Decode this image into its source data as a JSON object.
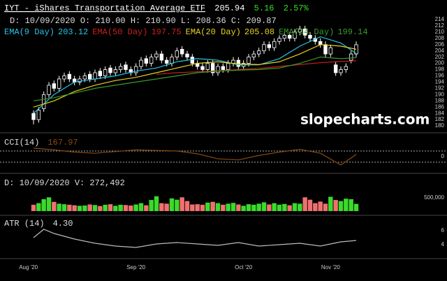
{
  "header": {
    "symbol": "IYT - iShares Transportation Average ETF",
    "last": "205.94",
    "change": "5.16",
    "change_pct": "2.57%",
    "cursor": "D: 10/09/2020 O: 210.00 H: 210.90 L: 208.36 C: 209.87",
    "watermark": "slopecharts.com"
  },
  "x_axis": {
    "xlim": [
      -3,
      66
    ],
    "xticks": [
      {
        "value": -1,
        "label": "Aug '20"
      },
      {
        "value": 20,
        "label": "Sep '20"
      },
      {
        "value": 41,
        "label": "Oct '20"
      },
      {
        "value": 58,
        "label": "Nov '20"
      }
    ]
  },
  "chart_data": [
    {
      "type": "candlestick",
      "ylim": [
        178,
        215
      ],
      "yticks": [
        180,
        182,
        184,
        186,
        188,
        190,
        192,
        194,
        196,
        198,
        200,
        202,
        204,
        206,
        208,
        210,
        212,
        214
      ],
      "open": [
        184,
        182,
        185.5,
        190,
        193.5,
        192,
        195,
        196.5,
        195,
        194,
        195,
        196.5,
        195,
        197.5,
        196,
        198.5,
        197,
        198,
        199.5,
        198,
        197,
        199,
        201.5,
        200,
        202,
        203,
        201,
        200,
        202,
        204.5,
        203,
        202,
        200,
        199,
        198,
        200,
        197,
        199,
        198,
        200,
        201,
        199,
        200,
        202,
        203,
        204,
        206,
        205,
        207,
        208,
        209,
        208,
        210,
        211,
        209,
        208,
        207,
        206,
        203,
        199.5,
        197,
        198,
        201,
        203
      ],
      "high": [
        185,
        186,
        191,
        194,
        194.5,
        196,
        197,
        197.5,
        196,
        196,
        197,
        197.5,
        198,
        198.5,
        199,
        199.5,
        199,
        200,
        200.5,
        199,
        200,
        202,
        202.5,
        203,
        204,
        204,
        202,
        203,
        205,
        205.5,
        204,
        203,
        201,
        200,
        201,
        201,
        200,
        200,
        201,
        202,
        202,
        201,
        203,
        204,
        205,
        207,
        207,
        208,
        209,
        210,
        210,
        211,
        212,
        212,
        210,
        209,
        208,
        207,
        206,
        200.5,
        199,
        200,
        204,
        207
      ],
      "low": [
        180.5,
        181,
        184.5,
        189,
        191,
        191,
        194,
        194,
        193,
        193,
        194,
        194,
        194,
        195,
        195,
        196,
        196,
        197,
        197,
        196,
        196,
        198,
        199,
        199,
        201,
        200,
        199,
        199,
        201,
        202,
        201,
        199,
        198,
        197,
        197,
        196,
        196,
        197,
        197,
        199,
        198,
        198,
        199,
        201,
        202,
        203,
        204,
        204,
        206,
        207,
        207,
        207,
        209,
        208,
        207,
        206,
        205,
        202,
        202,
        196,
        196,
        197,
        200,
        202
      ],
      "close": [
        182,
        185,
        190,
        193,
        192,
        195,
        196,
        195,
        194,
        195,
        196,
        195,
        197,
        196,
        198,
        197,
        198,
        199,
        198,
        197,
        199,
        201,
        200,
        202,
        203,
        201,
        200,
        202,
        204,
        203,
        202,
        200,
        199,
        198,
        200,
        197,
        199,
        198,
        200,
        201,
        199,
        200,
        202,
        203,
        204,
        206,
        205,
        207,
        208,
        209,
        208,
        210,
        211,
        209,
        208,
        207,
        206,
        203,
        205,
        197,
        198,
        199,
        203,
        205.94
      ],
      "up_color": "#000000",
      "down_color": "#ffffff",
      "wick_color": "#ffffff",
      "series": [
        {
          "name": "EMA(9 Day)",
          "value_label": "203.12",
          "color": "#26c6e6",
          "x": [
            0,
            4,
            8,
            12,
            16,
            20,
            24,
            28,
            32,
            36,
            40,
            44,
            48,
            52,
            56,
            60,
            63
          ],
          "values": [
            184,
            190,
            194,
            195,
            196,
            197.5,
            198.5,
            200.5,
            201.5,
            201,
            199.5,
            199.5,
            201.5,
            205.5,
            208.5,
            206.5,
            203.12
          ]
        },
        {
          "name": "EMA(50 Day)",
          "value_label": "197.75",
          "color": "#c8201e",
          "x": [
            24,
            28,
            32,
            36,
            40,
            44,
            48,
            52,
            56,
            60,
            63
          ],
          "values": [
            196.5,
            197,
            197.3,
            197.6,
            198,
            198.4,
            199,
            199.6,
            200.2,
            200.6,
            200.8
          ]
        },
        {
          "name": "EMA(20 Day)",
          "value_label": "205.08",
          "color": "#e8d21e",
          "x": [
            0,
            4,
            8,
            12,
            16,
            20,
            24,
            28,
            32,
            36,
            40,
            44,
            48,
            52,
            56,
            60,
            63
          ],
          "values": [
            186,
            188,
            191,
            193,
            194.5,
            195.5,
            197,
            198.5,
            200,
            200.5,
            199.8,
            199.6,
            200.5,
            203,
            206,
            205.5,
            204.5
          ]
        },
        {
          "name": "EMA(34 Day)",
          "value_label": "199.14",
          "color": "#3a9a2a",
          "x": [
            0,
            4,
            8,
            12,
            16,
            20,
            24,
            28,
            32,
            36,
            40,
            44,
            48,
            52,
            56,
            60,
            63
          ],
          "values": [
            188,
            189,
            190.5,
            192,
            193,
            194,
            195,
            196,
            197,
            197.5,
            197.8,
            198,
            198.5,
            200,
            202,
            201.5,
            201.8
          ]
        }
      ]
    },
    {
      "type": "line",
      "title": "CCI(14)",
      "value_label": "167.97",
      "ylim": [
        -350,
        350
      ],
      "yticks": [
        0
      ],
      "levels": [
        -100,
        100
      ],
      "color": "#8a4a10",
      "x": [
        0,
        4,
        8,
        12,
        16,
        20,
        24,
        28,
        32,
        36,
        40,
        44,
        48,
        52,
        56,
        60,
        63
      ],
      "values": [
        150,
        120,
        80,
        60,
        90,
        120,
        110,
        100,
        50,
        -40,
        -60,
        20,
        80,
        130,
        60,
        -150,
        40
      ]
    },
    {
      "type": "bar",
      "title": "D: 10/09/2020 V: 272,492",
      "ylim": [
        0,
        1240000
      ],
      "yticks": [
        {
          "value": 500000,
          "label": "500,000"
        }
      ],
      "up_color": "#3adb2a",
      "down_color": "#f07070",
      "values": [
        240000,
        300000,
        450000,
        520000,
        350000,
        280000,
        260000,
        240000,
        220000,
        200000,
        210000,
        250000,
        230000,
        190000,
        240000,
        260000,
        200000,
        240000,
        230000,
        210000,
        250000,
        300000,
        220000,
        420000,
        560000,
        300000,
        280000,
        480000,
        430000,
        520000,
        380000,
        250000,
        260000,
        240000,
        320000,
        350000,
        300000,
        240000,
        280000,
        310000,
        250000,
        200000,
        260000,
        240000,
        280000,
        330000,
        250000,
        300000,
        240000,
        270000,
        220000,
        300000,
        280000,
        520000,
        430000,
        300000,
        360000,
        280000,
        540000,
        420000,
        380000,
        470000,
        450000,
        272492
      ]
    },
    {
      "type": "line",
      "title": "ATR (14)",
      "value_label": "4.30",
      "ylim": [
        1.8,
        7.8
      ],
      "yticks": [
        4,
        6
      ],
      "color": "#bbbbbb",
      "x": [
        0,
        2,
        4,
        8,
        12,
        16,
        20,
        24,
        28,
        32,
        36,
        40,
        44,
        48,
        52,
        56,
        60,
        63
      ],
      "values": [
        5,
        6.2,
        5.6,
        4.8,
        4.2,
        3.8,
        3.6,
        4.1,
        4.3,
        4.1,
        3.9,
        4.3,
        3.8,
        4,
        4.2,
        3.8,
        4.4,
        4.6
      ]
    }
  ]
}
